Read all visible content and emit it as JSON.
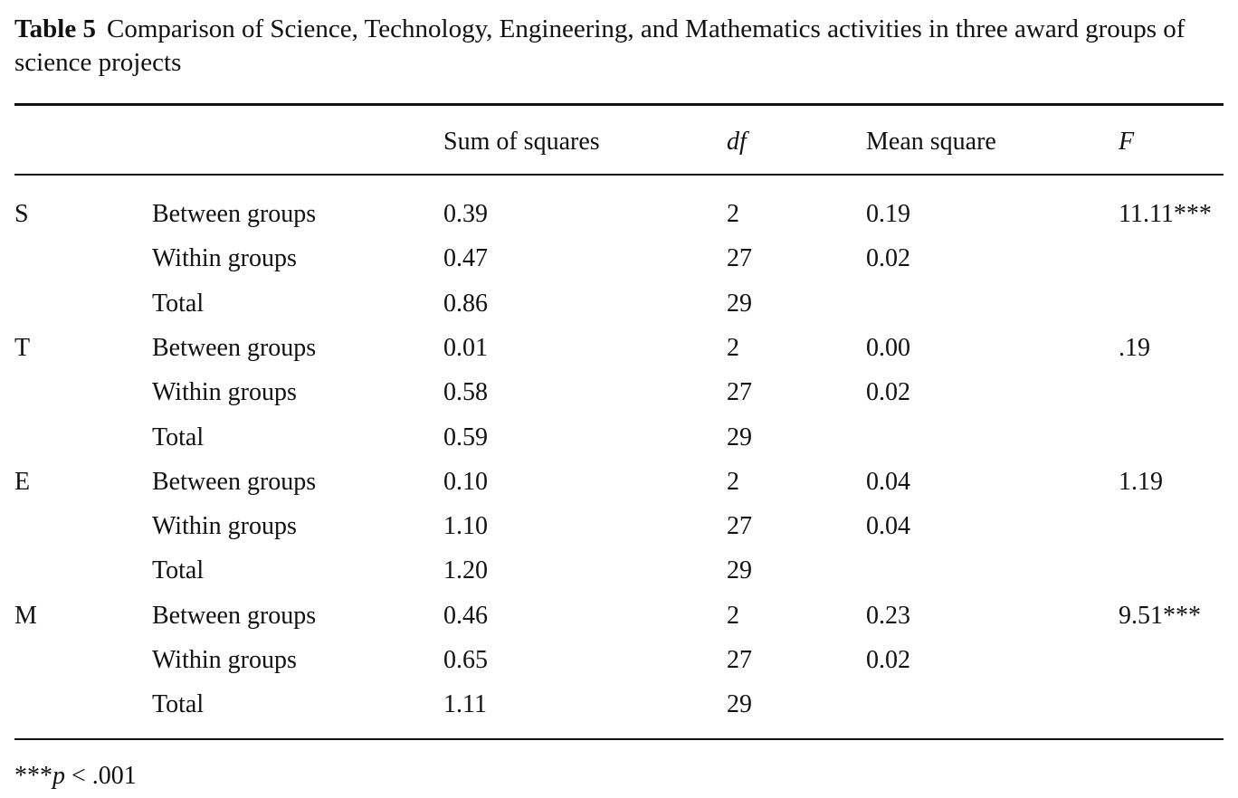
{
  "caption": {
    "label": "Table 5",
    "text": "Comparison of Science, Technology, Engineering, and Mathematics activities in three award groups of science projects"
  },
  "headers": [
    "",
    "",
    "Sum of squares",
    "df",
    "Mean square",
    "F"
  ],
  "rows": [
    [
      "S",
      "Between groups",
      "0.39",
      "2",
      "0.19",
      "11.11***"
    ],
    [
      "",
      "Within groups",
      "0.47",
      "27",
      "0.02",
      ""
    ],
    [
      "",
      "Total",
      "0.86",
      "29",
      "",
      ""
    ],
    [
      "T",
      "Between groups",
      "0.01",
      "2",
      "0.00",
      ".19"
    ],
    [
      "",
      "Within groups",
      "0.58",
      "27",
      "0.02",
      ""
    ],
    [
      "",
      "Total",
      "0.59",
      "29",
      "",
      ""
    ],
    [
      "E",
      "Between groups",
      "0.10",
      "2",
      "0.04",
      "1.19"
    ],
    [
      "",
      "Within groups",
      "1.10",
      "27",
      "0.04",
      ""
    ],
    [
      "",
      "Total",
      "1.20",
      "29",
      "",
      ""
    ],
    [
      "M",
      "Between groups",
      "0.46",
      "2",
      "0.23",
      "9.51***"
    ],
    [
      "",
      "Within groups",
      "0.65",
      "27",
      "0.02",
      ""
    ],
    [
      "",
      "Total",
      "1.11",
      "29",
      "",
      ""
    ]
  ],
  "footnote": {
    "stars": "***",
    "p": "p",
    "rest": " < .001"
  }
}
